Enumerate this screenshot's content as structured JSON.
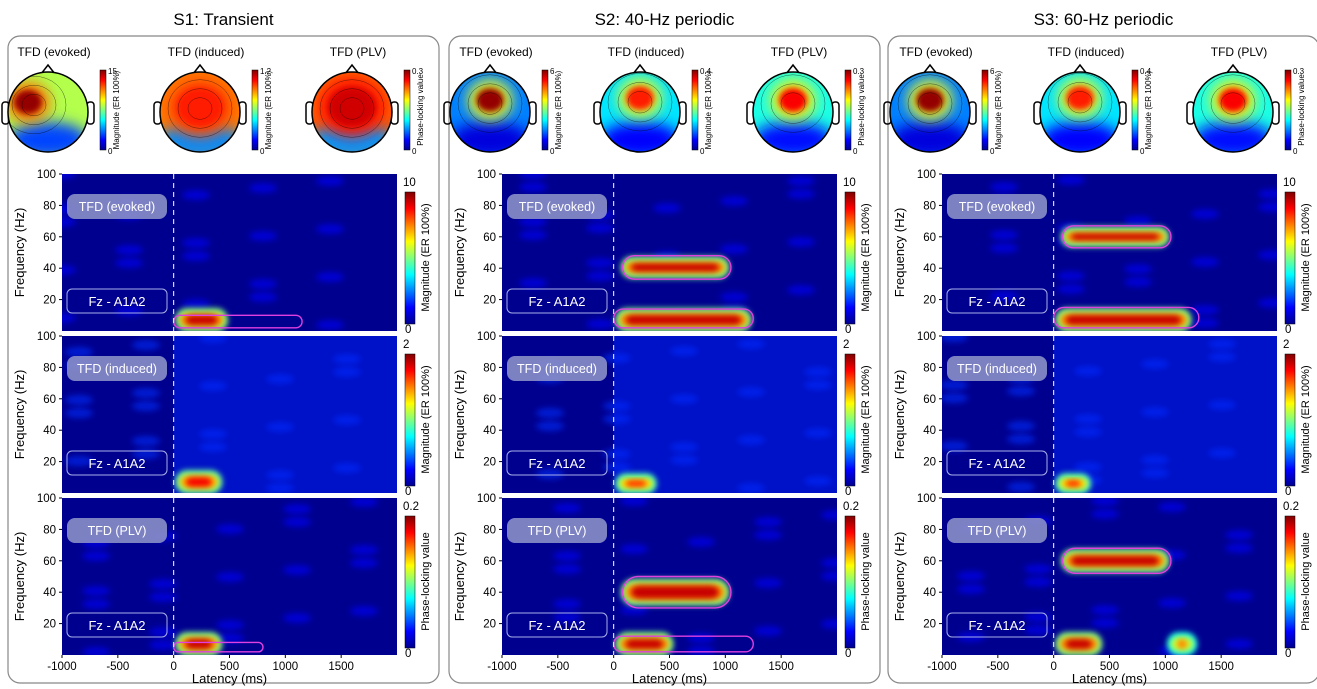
{
  "chart_data": [
    {
      "type": "heatmap",
      "title": "S1: Transient",
      "topomaps": [
        {
          "title": "TFD (evoked)",
          "cbar_max": "15",
          "cbar_min": "0",
          "cbar_label": "Magnitude (ER 100%)"
        },
        {
          "title": "TFD (induced)",
          "cbar_max": "1.2",
          "cbar_min": "0",
          "cbar_label": "Magnitude (ER 100%)"
        },
        {
          "title": "TFD (PLV)",
          "cbar_max": "0.3",
          "cbar_min": "0",
          "cbar_label": "Phase-locking value"
        }
      ],
      "xlabel": "Latency (ms)",
      "x_ticks": [
        "-1000",
        "-500",
        "0",
        "500",
        "1000",
        "1500"
      ],
      "xlim": [
        -1000,
        2000
      ],
      "ylim": [
        0,
        100
      ],
      "rows": [
        {
          "label": "TFD (evoked)",
          "channel": "Fz - A1A2",
          "ylabel": "Frequency (Hz)",
          "y_ticks": [
            "100",
            "80",
            "60",
            "40",
            "20"
          ],
          "cbar_max": "10",
          "cbar_min": "0",
          "cbar_label": "Magnitude (ER 100%)",
          "blobs": [
            {
              "t": [
                50,
                450
              ],
              "f": [
                2,
                12
              ],
              "peak": 1.0
            }
          ],
          "contour": [
            {
              "t": [
                0,
                1150
              ],
              "f": [
                2,
                10
              ]
            }
          ]
        },
        {
          "label": "TFD (induced)",
          "channel": "Fz - A1A2",
          "ylabel": "Frequency (Hz)",
          "y_ticks": [
            "100",
            "80",
            "60",
            "40",
            "20"
          ],
          "cbar_max": "2",
          "cbar_min": "0",
          "cbar_label": "Magnitude (ER 100%)",
          "blobs": [
            {
              "t": [
                50,
                400
              ],
              "f": [
                2,
                12
              ],
              "peak": 0.95
            }
          ],
          "contour": []
        },
        {
          "label": "TFD (PLV)",
          "channel": "Fz - A1A2",
          "ylabel": "Frequency (Hz)",
          "y_ticks": [
            "100",
            "80",
            "60",
            "40",
            "20"
          ],
          "cbar_max": "0.2",
          "cbar_min": "0",
          "cbar_label": "Phase-locking value",
          "blobs": [
            {
              "t": [
                50,
                400
              ],
              "f": [
                2,
                12
              ],
              "peak": 1.0
            }
          ],
          "contour": [
            {
              "t": [
                0,
                800
              ],
              "f": [
                2,
                8
              ]
            }
          ]
        }
      ]
    },
    {
      "type": "heatmap",
      "title": "S2: 40-Hz periodic",
      "topomaps": [
        {
          "title": "TFD (evoked)",
          "cbar_max": "6",
          "cbar_min": "0",
          "cbar_label": "Magnitude (ER 100%)"
        },
        {
          "title": "TFD (induced)",
          "cbar_max": "0.4",
          "cbar_min": "0",
          "cbar_label": "Magnitude (ER 100%)"
        },
        {
          "title": "TFD (PLV)",
          "cbar_max": "0.3",
          "cbar_min": "0",
          "cbar_label": "Phase-locking value"
        }
      ],
      "xlabel": "Latency (ms)",
      "x_ticks": [
        "-1000",
        "-500",
        "0",
        "500",
        "1000",
        "1500"
      ],
      "xlim": [
        -1000,
        2000
      ],
      "ylim": [
        0,
        100
      ],
      "rows": [
        {
          "label": "TFD (evoked)",
          "channel": "Fz - A1A2",
          "ylabel": "Frequency (Hz)",
          "y_ticks": [
            "100",
            "80",
            "60",
            "40",
            "20"
          ],
          "cbar_max": "10",
          "cbar_min": "0",
          "cbar_label": "Magnitude (ER 100%)",
          "blobs": [
            {
              "t": [
                100,
                1000
              ],
              "f": [
                36,
                45
              ],
              "peak": 1.0
            },
            {
              "t": [
                50,
                1200
              ],
              "f": [
                2,
                12
              ],
              "peak": 1.0
            }
          ],
          "contour": [
            {
              "t": [
                80,
                1050
              ],
              "f": [
                33,
                48
              ]
            },
            {
              "t": [
                0,
                1250
              ],
              "f": [
                2,
                14
              ]
            }
          ]
        },
        {
          "label": "TFD (induced)",
          "channel": "Fz - A1A2",
          "ylabel": "Frequency (Hz)",
          "y_ticks": [
            "100",
            "80",
            "60",
            "40",
            "20"
          ],
          "cbar_max": "2",
          "cbar_min": "0",
          "cbar_label": "Magnitude (ER 100%)",
          "blobs": [
            {
              "t": [
                50,
                350
              ],
              "f": [
                2,
                10
              ],
              "peak": 0.9
            }
          ],
          "contour": []
        },
        {
          "label": "TFD (PLV)",
          "channel": "Fz - A1A2",
          "ylabel": "Frequency (Hz)",
          "y_ticks": [
            "100",
            "80",
            "60",
            "40",
            "20"
          ],
          "cbar_max": "0.2",
          "cbar_min": "0",
          "cbar_label": "Phase-locking value",
          "blobs": [
            {
              "t": [
                100,
                1000
              ],
              "f": [
                34,
                46
              ],
              "peak": 1.0
            },
            {
              "t": [
                50,
                500
              ],
              "f": [
                2,
                12
              ],
              "peak": 1.0
            }
          ],
          "contour": [
            {
              "t": [
                80,
                1050
              ],
              "f": [
                30,
                50
              ]
            },
            {
              "t": [
                0,
                1250
              ],
              "f": [
                2,
                12
              ]
            }
          ]
        }
      ]
    },
    {
      "type": "heatmap",
      "title": "S3: 60-Hz periodic",
      "topomaps": [
        {
          "title": "TFD (evoked)",
          "cbar_max": "6",
          "cbar_min": "0",
          "cbar_label": "Magnitude (ER 100%)"
        },
        {
          "title": "TFD (induced)",
          "cbar_max": "0.4",
          "cbar_min": "0",
          "cbar_label": "Magnitude (ER 100%)"
        },
        {
          "title": "TFD (PLV)",
          "cbar_max": "0.3",
          "cbar_min": "0",
          "cbar_label": "Phase-locking value"
        }
      ],
      "xlabel": "Latency (ms)",
      "x_ticks": [
        "-1000",
        "-500",
        "0",
        "500",
        "1000",
        "1500"
      ],
      "xlim": [
        -1000,
        2000
      ],
      "ylim": [
        0,
        100
      ],
      "rows": [
        {
          "label": "TFD (evoked)",
          "channel": "Fz - A1A2",
          "ylabel": "Frequency (Hz)",
          "y_ticks": [
            "100",
            "80",
            "60",
            "40",
            "20"
          ],
          "cbar_max": "10",
          "cbar_min": "0",
          "cbar_label": "Magnitude (ER 100%)",
          "blobs": [
            {
              "t": [
                100,
                1000
              ],
              "f": [
                56,
                64
              ],
              "peak": 1.0
            },
            {
              "t": [
                50,
                1200
              ],
              "f": [
                2,
                12
              ],
              "peak": 1.0
            }
          ],
          "contour": [
            {
              "t": [
                80,
                1050
              ],
              "f": [
                53,
                67
              ]
            },
            {
              "t": [
                0,
                1300
              ],
              "f": [
                2,
                15
              ]
            }
          ]
        },
        {
          "label": "TFD (induced)",
          "channel": "Fz - A1A2",
          "ylabel": "Frequency (Hz)",
          "y_ticks": [
            "100",
            "80",
            "60",
            "40",
            "20"
          ],
          "cbar_max": "2",
          "cbar_min": "0",
          "cbar_label": "Magnitude (ER 100%)",
          "blobs": [
            {
              "t": [
                50,
                300
              ],
              "f": [
                2,
                10
              ],
              "peak": 0.9
            }
          ],
          "contour": []
        },
        {
          "label": "TFD (PLV)",
          "channel": "Fz - A1A2",
          "ylabel": "Frequency (Hz)",
          "y_ticks": [
            "100",
            "80",
            "60",
            "40",
            "20"
          ],
          "cbar_max": "0.2",
          "cbar_min": "0",
          "cbar_label": "Phase-locking value",
          "blobs": [
            {
              "t": [
                100,
                1000
              ],
              "f": [
                55,
                65
              ],
              "peak": 1.0
            },
            {
              "t": [
                50,
                400
              ],
              "f": [
                2,
                12
              ],
              "peak": 1.0
            },
            {
              "t": [
                1050,
                1250
              ],
              "f": [
                2,
                12
              ],
              "peak": 0.8
            }
          ],
          "contour": [
            {
              "t": [
                80,
                1050
              ],
              "f": [
                52,
                68
              ]
            }
          ]
        }
      ]
    }
  ],
  "colors": {
    "background": "#00008f",
    "contour": "#e040e0",
    "pill": "#8a8fc8",
    "frame": "#888888"
  }
}
